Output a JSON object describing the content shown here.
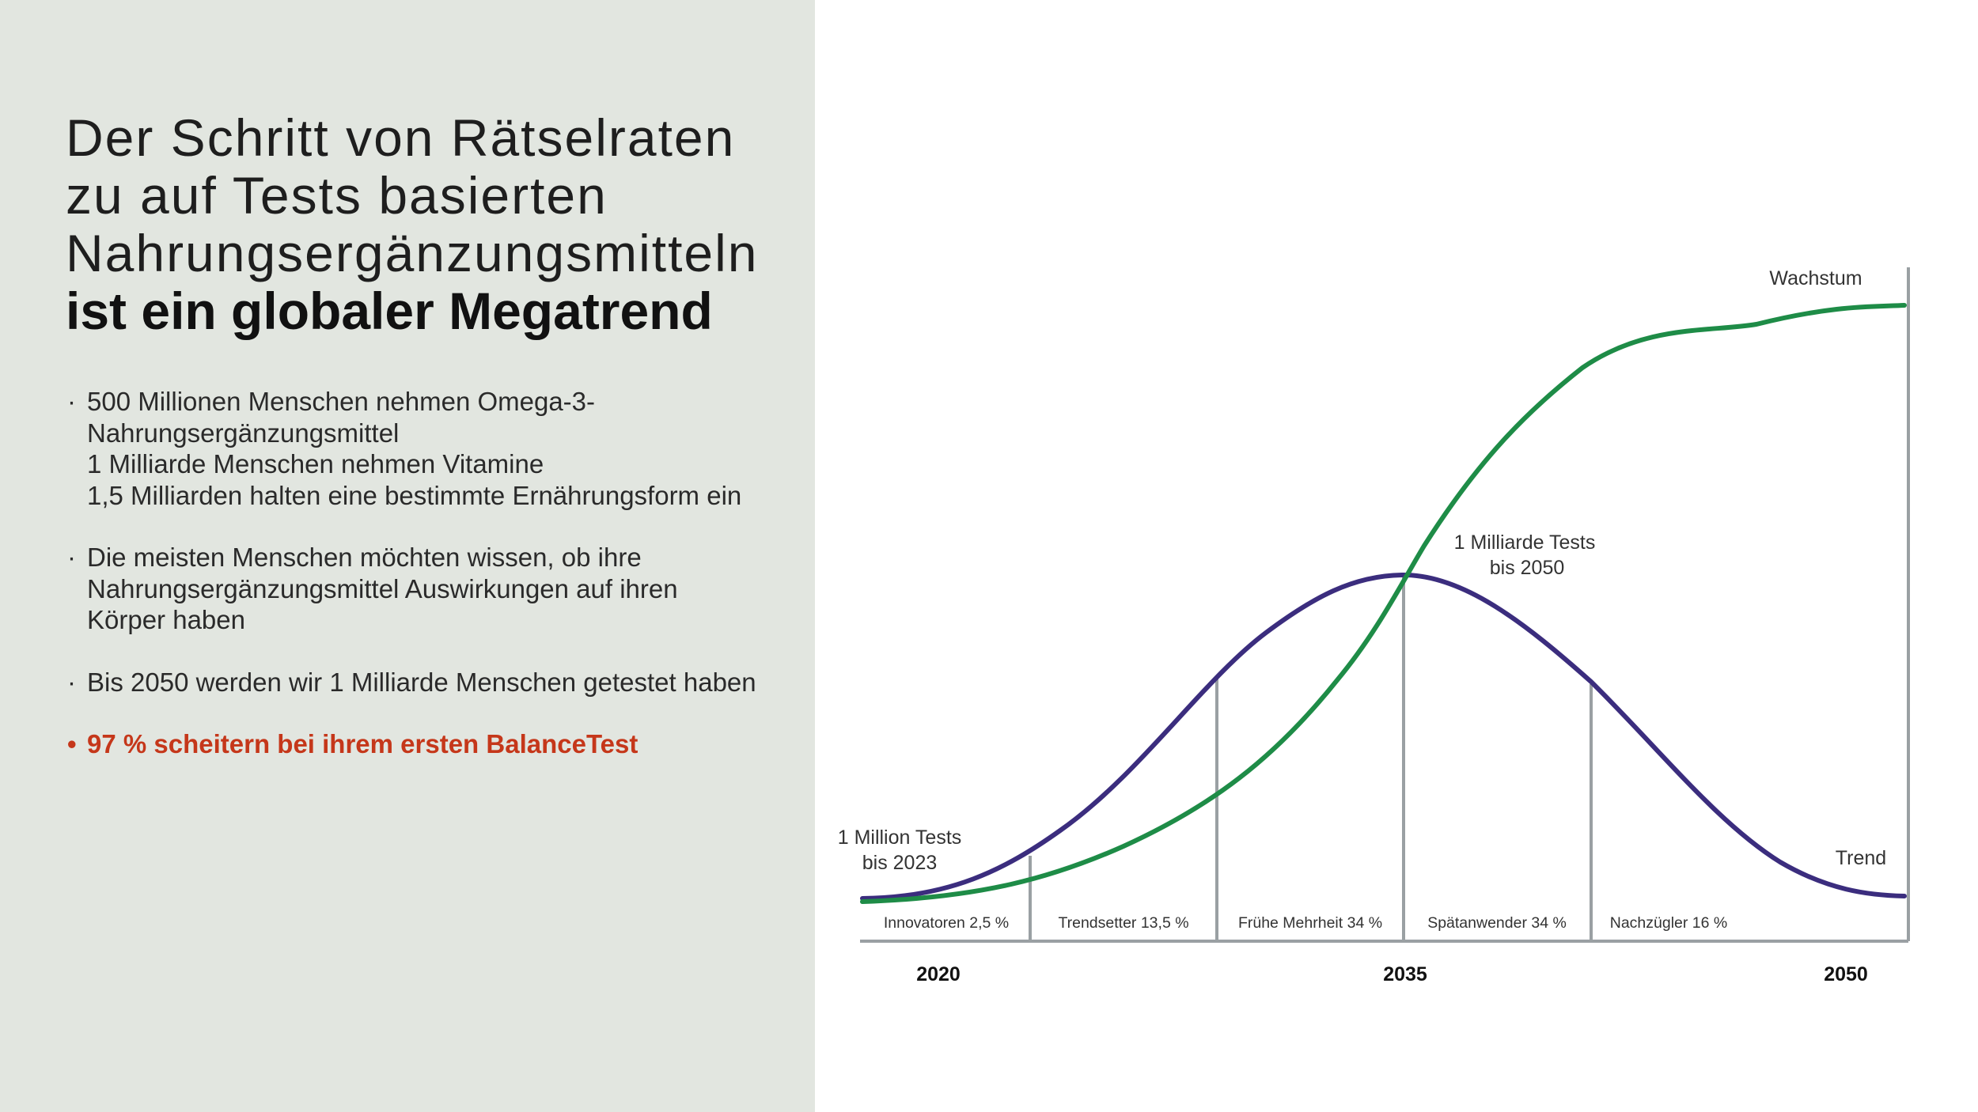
{
  "title": {
    "lines": [
      "Der Schritt von Rätselraten",
      "zu auf Tests basierten",
      "Nahrungsergänzungsmitteln"
    ],
    "bold": "ist ein globaler Megatrend"
  },
  "bullets": [
    {
      "lines": [
        "500 Millionen Menschen nehmen Omega-3-",
        "Nahrungsergänzungsmittel",
        "1 Milliarde Menschen nehmen Vitamine",
        "1,5 Milliarden halten eine bestimmte Ernährungsform ein"
      ]
    },
    {
      "lines": [
        "Die meisten Menschen möchten wissen, ob ihre",
        "Nahrungsergänzungsmittel Auswirkungen auf ihren",
        "Körper haben"
      ]
    },
    {
      "lines": [
        "Bis 2050 werden wir 1 Milliarde Menschen getestet haben"
      ]
    }
  ],
  "highlight_bullet": "97 % scheitern bei ihrem ersten BalanceTest",
  "colors": {
    "panel_bg": "#e2e6e0",
    "growth": "#1e8c47",
    "trend": "#3b2d7e",
    "grid": "#9aa0a3",
    "highlight": "#c5371a"
  },
  "chart_data": {
    "type": "line",
    "x_ticks": [
      "2020",
      "2035",
      "2050"
    ],
    "series": [
      {
        "name": "Wachstum",
        "color": "#1e8c47"
      },
      {
        "name": "Trend",
        "color": "#3b2d7e"
      }
    ],
    "segments": [
      {
        "label": "Innovatoren 2,5 %"
      },
      {
        "label": "Trendsetter 13,5 %"
      },
      {
        "label": "Frühe Mehrheit 34 %"
      },
      {
        "label": "Spätanwender 34 %"
      },
      {
        "label": "Nachzügler 16 %"
      }
    ],
    "annotations": {
      "start": [
        "1 Million Tests",
        "bis 2023"
      ],
      "peak": [
        "1 Milliarde Tests",
        "bis 2050"
      ]
    }
  }
}
